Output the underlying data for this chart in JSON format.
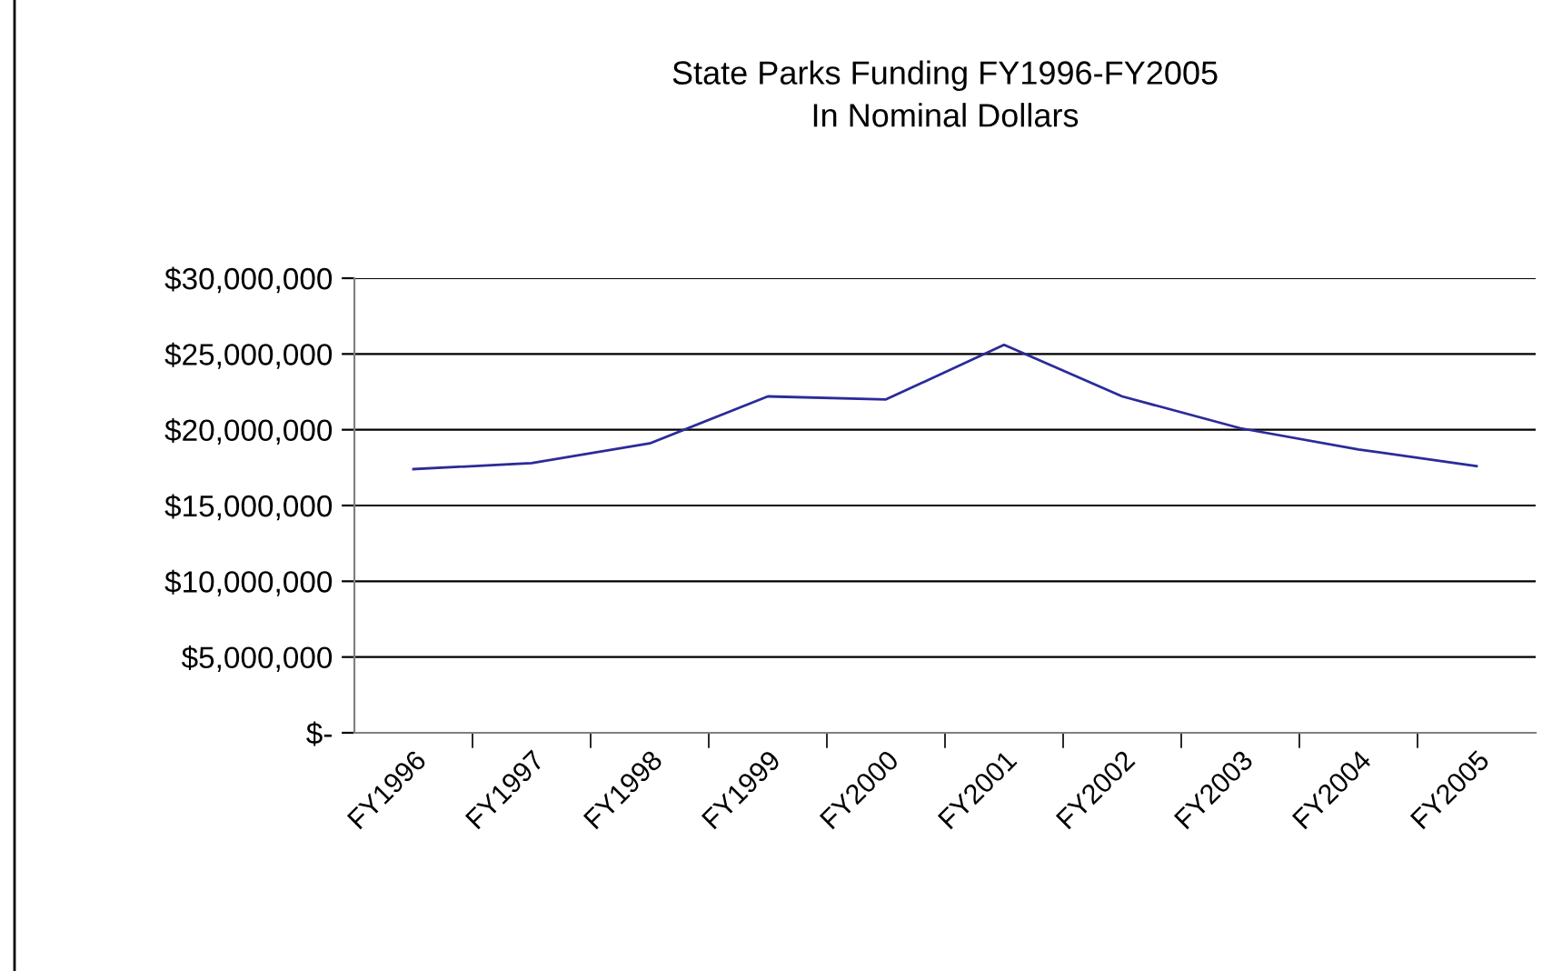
{
  "chart_data": {
    "type": "line",
    "title": "State Parks Funding FY1996-FY2005\nIn Nominal Dollars",
    "categories": [
      "FY1996",
      "FY1997",
      "FY1998",
      "FY1999",
      "FY2000",
      "FY2001",
      "FY2002",
      "FY2003",
      "FY2004",
      "FY2005"
    ],
    "series": [
      {
        "color": "#2b2b9a",
        "values": [
          17400000,
          17800000,
          19100000,
          22200000,
          22000000,
          25600000,
          22200000,
          20100000,
          18700000,
          17600000
        ]
      }
    ],
    "ylim": [
      0,
      30000000
    ],
    "yticks": [
      {
        "value": 0,
        "label": "$-"
      },
      {
        "value": 5000000,
        "label": "$5,000,000"
      },
      {
        "value": 10000000,
        "label": "$10,000,000"
      },
      {
        "value": 15000000,
        "label": "$15,000,000"
      },
      {
        "value": 20000000,
        "label": "$20,000,000"
      },
      {
        "value": 25000000,
        "label": "$25,000,000"
      },
      {
        "value": 30000000,
        "label": "$30,000,000"
      }
    ],
    "grid": "y",
    "marker": "none",
    "line_style": "solid"
  }
}
